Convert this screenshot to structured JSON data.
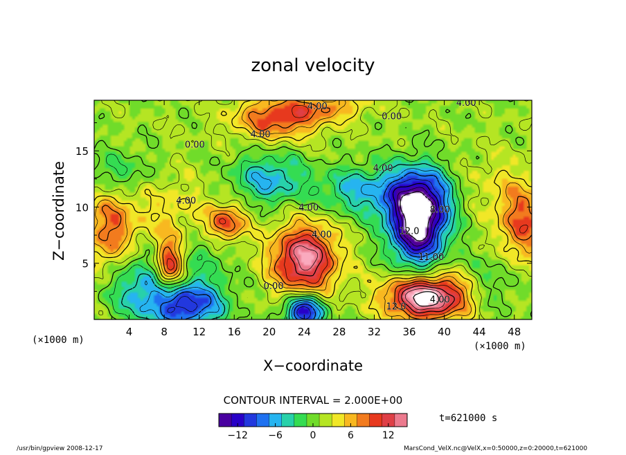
{
  "chart_data": {
    "type": "heatmap",
    "title": "zonal velocity",
    "xlabel": "X−coordinate",
    "ylabel": "Z−coordinate",
    "x_unit": "(×1000 m)",
    "y_unit": "(×1000 m)",
    "xlim": [
      0,
      50
    ],
    "ylim": [
      0,
      19.5
    ],
    "x_ticks": [
      "4",
      "8",
      "12",
      "16",
      "20",
      "24",
      "28",
      "32",
      "36",
      "40",
      "44",
      "48"
    ],
    "y_ticks": [
      "5",
      "10",
      "15"
    ],
    "contour_interval_label": "CONTOUR INTERVAL = 2.000E+00",
    "time_label": "t=621000 s",
    "colorbar": {
      "min": -15,
      "max": 15,
      "tick_labels": [
        "−12",
        "−6",
        "0",
        "6",
        "12"
      ],
      "tick_values": [
        -12,
        -6,
        0,
        6,
        12
      ]
    },
    "features": [
      {
        "x": 24,
        "z": 5.3,
        "value": 14,
        "sx": 2.6,
        "sz": 2.2
      },
      {
        "x": 8.5,
        "z": 4.6,
        "value": 11,
        "sx": 1.1,
        "sz": 1.7
      },
      {
        "x": 15,
        "z": 8.5,
        "value": 9,
        "sx": 1.6,
        "sz": 1.2
      },
      {
        "x": 1.5,
        "z": 7.8,
        "value": 7,
        "sx": 2.0,
        "sz": 2.8
      },
      {
        "x": 49,
        "z": 8.5,
        "value": 8,
        "sx": 2.0,
        "sz": 2.6
      },
      {
        "x": 21,
        "z": 18.0,
        "value": 9,
        "sx": 3.5,
        "sz": 1.3
      },
      {
        "x": 27,
        "z": 19.0,
        "value": 5,
        "sx": 3.0,
        "sz": 0.8
      },
      {
        "x": 37,
        "z": 8.3,
        "value": -17,
        "sx": 2.2,
        "sz": 2.6
      },
      {
        "x": 37,
        "z": 11.0,
        "value": -9,
        "sx": 3.0,
        "sz": 2.0
      },
      {
        "x": 38,
        "z": 1.9,
        "value": 17,
        "sx": 3.2,
        "sz": 1.4
      },
      {
        "x": 24,
        "z": 0.6,
        "value": -14,
        "sx": 1.6,
        "sz": 1.1
      },
      {
        "x": 10.5,
        "z": 1.2,
        "value": -12,
        "sx": 3.0,
        "sz": 1.5
      },
      {
        "x": 5,
        "z": 3.0,
        "value": -6,
        "sx": 3.0,
        "sz": 2.2
      },
      {
        "x": 20,
        "z": 12.5,
        "value": -7,
        "sx": 3.0,
        "sz": 1.6
      },
      {
        "x": 30,
        "z": 11.5,
        "value": -6,
        "sx": 3.0,
        "sz": 1.5
      },
      {
        "x": 2.5,
        "z": 13.0,
        "value": -4,
        "sx": 3.0,
        "sz": 1.5
      },
      {
        "x": 13,
        "z": 6.0,
        "value": -3,
        "sx": 2.0,
        "sz": 2.0
      },
      {
        "x": 46,
        "z": 3.5,
        "value": -3,
        "sx": 2.0,
        "sz": 2.0
      },
      {
        "x": 45,
        "z": 12.0,
        "value": 2,
        "sx": 3.0,
        "sz": 2.0
      },
      {
        "x": 8,
        "z": 9.5,
        "value": 3,
        "sx": 4.0,
        "sz": 2.5
      }
    ],
    "contour_labels": [
      {
        "text": "4.00",
        "x": 25.5,
        "z": 18.7
      },
      {
        "text": "0.00",
        "x": 34,
        "z": 17.8
      },
      {
        "text": "4.00",
        "x": 19,
        "z": 16.2
      },
      {
        "text": "0.00",
        "x": 11.5,
        "z": 15.3
      },
      {
        "text": "4.00",
        "x": 33,
        "z": 13.2
      },
      {
        "text": "4.00",
        "x": 10.5,
        "z": 10.3
      },
      {
        "text": "4.00",
        "x": 24.5,
        "z": 9.7
      },
      {
        "text": "4.00",
        "x": 26,
        "z": 7.3
      },
      {
        "text": "0.00",
        "x": 20.5,
        "z": 2.7
      },
      {
        "text": "12.0",
        "x": 36,
        "z": 7.6
      },
      {
        "text": "8.00",
        "x": 39.5,
        "z": 9.5
      },
      {
        "text": "11.00",
        "x": 38.5,
        "z": 5.3
      },
      {
        "text": "12.0",
        "x": 34.5,
        "z": 0.9
      },
      {
        "text": "4.00",
        "x": 39.5,
        "z": 1.5
      },
      {
        "text": "4.00",
        "x": 42.5,
        "z": 19.0
      }
    ]
  },
  "footer": {
    "left": "/usr/bin/gpview   2008-12-17",
    "right": "MarsCond_VelX.nc@VelX,x=0:50000,z=0:20000,t=621000"
  }
}
